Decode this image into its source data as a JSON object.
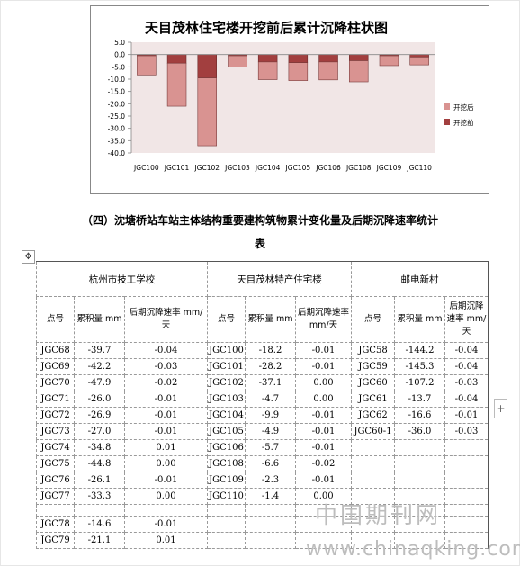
{
  "chart_data": {
    "type": "bar",
    "title": "天目茂林住宅楼开挖前后累计沉降柱状图",
    "categories": [
      "JGC100",
      "JGC101",
      "JGC102",
      "JGC103",
      "JGC104",
      "JGC105",
      "JGC106",
      "JGC108",
      "JGC109",
      "JGC110"
    ],
    "series": [
      {
        "name": "开挖后",
        "color": "#d99391",
        "values": [
          -7.8,
          -17.5,
          -27.6,
          -4.5,
          -7.2,
          -7.3,
          -7.3,
          -8.6,
          -4.0,
          -3.2
        ]
      },
      {
        "name": "开挖前",
        "color": "#a23f3f",
        "values": [
          -0.5,
          -3.5,
          -9.5,
          -0.5,
          -3.0,
          -3.3,
          -3.0,
          -2.5,
          -0.5,
          -1.0
        ]
      }
    ],
    "stacked": true,
    "ylim": [
      -40,
      5
    ],
    "yticks": [
      "5.0",
      "0.0",
      "-5.0",
      "-10.0",
      "-15.0",
      "-20.0",
      "-25.0",
      "-30.0",
      "-35.0",
      "-40.0"
    ],
    "grid": false,
    "legend_position": "right"
  },
  "table_caption": {
    "line1": "（四）沈塘桥站车站主体结构重要建构筑物累计变化量及后期沉降速率统计",
    "line2": "表"
  },
  "table": {
    "groups": [
      "杭州市技工学校",
      "天目茂林特产住宅楼",
      "邮电新村"
    ],
    "headers": [
      "点号",
      "累积量 mm",
      "后期沉降速率 mm/天",
      "点号",
      "累积量 mm",
      "后期沉降速率 mm/天",
      "点号",
      "累积量 mm",
      "后期沉降速率 mm/天"
    ],
    "rows": [
      [
        "JGC68",
        "-39.7",
        "-0.04",
        "JGC100",
        "-18.2",
        "-0.01",
        "JGC58",
        "-144.2",
        "-0.04"
      ],
      [
        "JGC69",
        "-42.2",
        "-0.03",
        "JGC101",
        "-28.2",
        "-0.01",
        "JGC59",
        "-145.3",
        "-0.04"
      ],
      [
        "JGC70",
        "-47.9",
        "-0.02",
        "JGC102",
        "-37.1",
        "0.00",
        "JGC60",
        "-107.2",
        "-0.03"
      ],
      [
        "JGC71",
        "-26.0",
        "-0.01",
        "JGC103",
        "-4.7",
        "0.00",
        "JGC61",
        "-13.7",
        "-0.04"
      ],
      [
        "JGC72",
        "-26.9",
        "-0.01",
        "JGC104",
        "-9.9",
        "-0.01",
        "JGC62",
        "-16.6",
        "-0.01"
      ],
      [
        "JGC73",
        "-27.0",
        "-0.01",
        "JGC105",
        "-4.9",
        "-0.01",
        "JGC60-1",
        "-36.0",
        "-0.03"
      ],
      [
        "JGC74",
        "-34.8",
        "0.01",
        "JGC106",
        "-5.7",
        "-0.01",
        "",
        "",
        ""
      ],
      [
        "JGC75",
        "-44.8",
        "0.00",
        "JGC108",
        "-6.6",
        "-0.02",
        "",
        "",
        ""
      ],
      [
        "JGC76",
        "-26.1",
        "-0.01",
        "JGC109",
        "-2.3",
        "-0.01",
        "",
        "",
        ""
      ],
      [
        "JGC77",
        "-33.3",
        "0.00",
        "JGC110",
        "-1.4",
        "0.00",
        "",
        "",
        ""
      ],
      [
        "",
        "",
        "",
        "",
        "",
        "",
        "",
        "",
        ""
      ],
      [
        "JGC78",
        "-14.6",
        "-0.01",
        "",
        "",
        "",
        "",
        "",
        ""
      ],
      [
        "JGC79",
        "-21.1",
        "0.01",
        "",
        "",
        "",
        "",
        "",
        ""
      ]
    ]
  },
  "watermark": {
    "cn": "中国期刊网",
    "url": "www.chinaqking.com"
  },
  "handles": {
    "move_icon": "move-icon",
    "move_glyph": "✥",
    "add_icon": "plus-icon",
    "add_glyph": "+"
  }
}
